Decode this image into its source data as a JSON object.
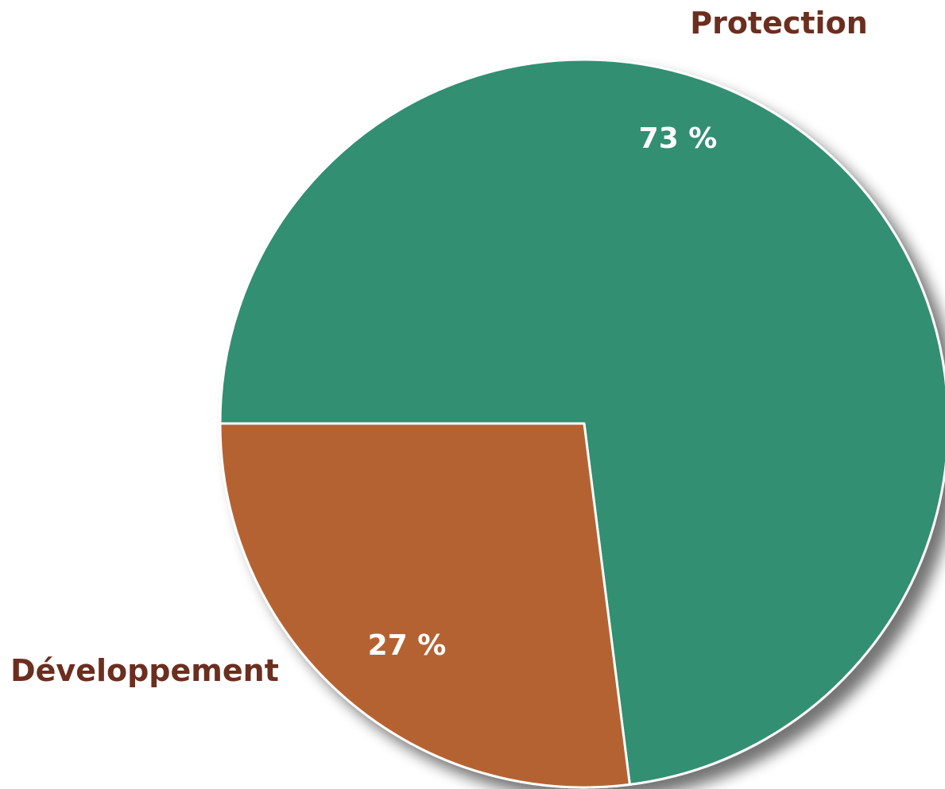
{
  "chart_data": {
    "type": "pie",
    "slices": [
      {
        "label": "Protection",
        "value": 73,
        "value_label": "73 %",
        "color": "#338F71"
      },
      {
        "label": "Développement",
        "value": 27,
        "value_label": "27 %",
        "color": "#B56230"
      }
    ]
  },
  "colors": {
    "label_text": "#6B2E1F",
    "slice_border": "#ffffff"
  }
}
